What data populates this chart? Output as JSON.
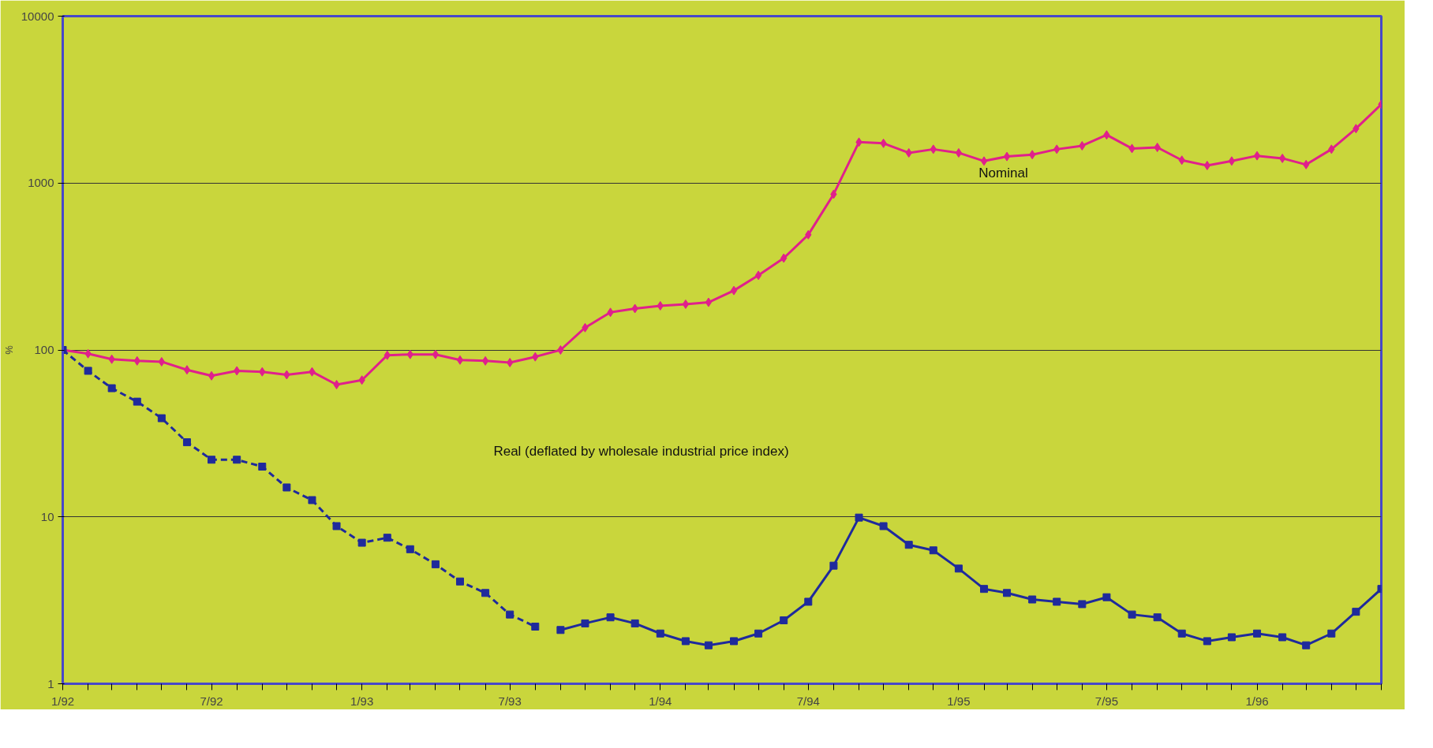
{
  "chart_data": {
    "type": "line",
    "ylabel": "%",
    "log": true,
    "grid": "y",
    "x": [
      "1992-01",
      "1992-02",
      "1992-03",
      "1992-04",
      "1992-05",
      "1992-06",
      "1992-07",
      "1992-08",
      "1992-09",
      "1992-10",
      "1992-11",
      "1992-12",
      "1993-01",
      "1993-02",
      "1993-03",
      "1993-04",
      "1993-05",
      "1993-06",
      "1993-07",
      "1993-08",
      "1993-09",
      "1993-10",
      "1993-11",
      "1993-12",
      "1994-01",
      "1994-02",
      "1994-03",
      "1994-04",
      "1994-05",
      "1994-06",
      "1994-07",
      "1994-08",
      "1994-09",
      "1994-10",
      "1994-11",
      "1994-12",
      "1995-01",
      "1995-02",
      "1995-03",
      "1995-04",
      "1995-05",
      "1995-06",
      "1995-07",
      "1995-08",
      "1995-09",
      "1995-10",
      "1995-11",
      "1995-12",
      "1996-01",
      "1996-02",
      "1996-03",
      "1996-04",
      "1996-05",
      "1996-06"
    ],
    "series": [
      {
        "color": "#e0208c",
        "marker": "diamond",
        "line_style": "solid",
        "values": [
          100,
          95,
          88,
          86,
          85,
          76,
          70,
          75,
          74,
          71,
          74,
          62,
          66,
          93,
          94,
          94,
          87,
          86,
          84,
          91,
          100,
          136,
          168,
          177,
          184,
          188,
          193,
          227,
          280,
          355,
          490,
          857,
          1758,
          1730,
          1517,
          1594,
          1517,
          1355,
          1442,
          1479,
          1594,
          1673,
          1943,
          1611,
          1635,
          1371,
          1274,
          1355,
          1457,
          1406,
          1290,
          1594,
          2119,
          2963
        ]
      },
      {
        "color": "#1f2a9c",
        "marker": "square",
        "line_style": "dashed",
        "values": [
          100,
          75,
          59,
          49,
          39,
          28,
          22,
          22,
          20,
          15,
          12.6,
          8.8,
          7.0,
          7.5,
          6.4,
          5.2,
          4.1,
          3.5,
          2.6,
          2.2,
          null,
          null,
          null,
          null,
          null,
          null,
          null,
          null,
          null,
          null,
          null,
          null,
          null,
          null,
          null,
          null,
          null,
          null,
          null,
          null,
          null,
          null,
          null,
          null,
          null,
          null,
          null,
          null,
          null,
          null,
          null,
          null,
          null,
          null
        ]
      },
      {
        "color": "#1f2a9c",
        "marker": "square",
        "line_style": "solid",
        "values": [
          null,
          null,
          null,
          null,
          null,
          null,
          null,
          null,
          null,
          null,
          null,
          null,
          null,
          null,
          null,
          null,
          null,
          null,
          null,
          null,
          2.1,
          2.3,
          2.5,
          2.3,
          2.0,
          1.8,
          1.7,
          1.8,
          2.0,
          2.4,
          3.1,
          5.1,
          9.9,
          8.8,
          6.8,
          6.3,
          4.9,
          3.7,
          3.5,
          3.2,
          3.1,
          3.0,
          3.3,
          2.6,
          2.5,
          2.0,
          1.8,
          1.9,
          2.0,
          1.9,
          1.7,
          2.0,
          2.7,
          3.7
        ]
      }
    ],
    "annotations": [
      "Nominal",
      "Real (deflated by wholesale industrial price index)"
    ],
    "ylim": [
      1,
      10000
    ],
    "yticks": [
      1,
      10,
      100,
      1000,
      10000
    ],
    "xlim": [
      "1992-01",
      "1996-06"
    ],
    "xticks": [
      {
        "value": "1992-01",
        "label": "1/92"
      },
      {
        "value": "1992-02",
        "label": null
      },
      {
        "value": "1992-03",
        "label": null
      },
      {
        "value": "1992-04",
        "label": null
      },
      {
        "value": "1992-05",
        "label": null
      },
      {
        "value": "1992-06",
        "label": null
      },
      {
        "value": "1992-07",
        "label": "7/92"
      },
      {
        "value": "1992-08",
        "label": null
      },
      {
        "value": "1992-09",
        "label": null
      },
      {
        "value": "1992-10",
        "label": null
      },
      {
        "value": "1992-11",
        "label": null
      },
      {
        "value": "1992-12",
        "label": null
      },
      {
        "value": "1993-01",
        "label": "1/93"
      },
      {
        "value": "1993-02",
        "label": null
      },
      {
        "value": "1993-03",
        "label": null
      },
      {
        "value": "1993-04",
        "label": null
      },
      {
        "value": "1993-05",
        "label": null
      },
      {
        "value": "1993-06",
        "label": null
      },
      {
        "value": "1993-07",
        "label": "7/93"
      },
      {
        "value": "1993-08",
        "label": null
      },
      {
        "value": "1993-09",
        "label": null
      },
      {
        "value": "1993-10",
        "label": null
      },
      {
        "value": "1993-11",
        "label": null
      },
      {
        "value": "1993-12",
        "label": null
      },
      {
        "value": "1994-01",
        "label": "1/94"
      },
      {
        "value": "1994-02",
        "label": null
      },
      {
        "value": "1994-03",
        "label": null
      },
      {
        "value": "1994-04",
        "label": null
      },
      {
        "value": "1994-05",
        "label": null
      },
      {
        "value": "1994-06",
        "label": null
      },
      {
        "value": "1994-07",
        "label": "7/94"
      },
      {
        "value": "1994-08",
        "label": null
      },
      {
        "value": "1994-09",
        "label": null
      },
      {
        "value": "1994-10",
        "label": null
      },
      {
        "value": "1994-11",
        "label": null
      },
      {
        "value": "1994-12",
        "label": null
      },
      {
        "value": "1995-01",
        "label": "1/95"
      },
      {
        "value": "1995-02",
        "label": null
      },
      {
        "value": "1995-03",
        "label": null
      },
      {
        "value": "1995-04",
        "label": null
      },
      {
        "value": "1995-05",
        "label": null
      },
      {
        "value": "1995-06",
        "label": null
      },
      {
        "value": "1995-07",
        "label": "7/95"
      },
      {
        "value": "1995-08",
        "label": null
      },
      {
        "value": "1995-09",
        "label": null
      },
      {
        "value": "1995-10",
        "label": null
      },
      {
        "value": "1995-11",
        "label": null
      },
      {
        "value": "1995-12",
        "label": null
      },
      {
        "value": "1996-01",
        "label": "1/96"
      },
      {
        "value": "1996-02",
        "label": null
      },
      {
        "value": "1996-03",
        "label": null
      },
      {
        "value": "1996-04",
        "label": null
      },
      {
        "value": "1996-05",
        "label": null
      },
      {
        "value": "1996-06",
        "label": null
      }
    ]
  }
}
